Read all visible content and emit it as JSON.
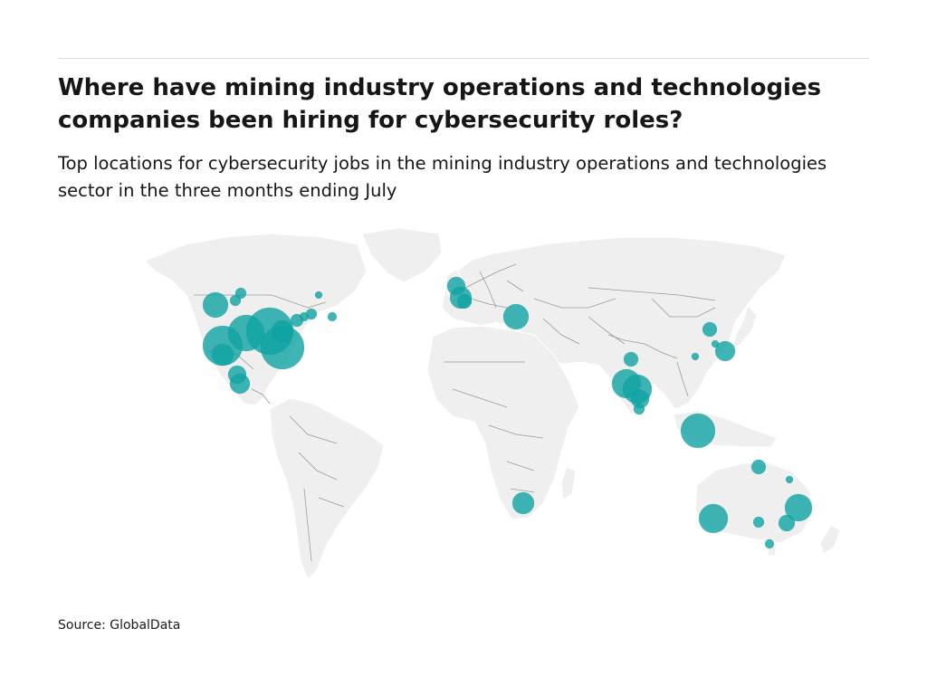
{
  "header": {
    "title": "Where have mining industry operations and technologies companies been hiring for cybersecurity roles?",
    "subtitle": "Top locations for cybersecurity jobs in the mining industry operations and technologies sector in the three months ending July"
  },
  "footer": {
    "source": "Source: GlobalData"
  },
  "colors": {
    "land": "#efefef",
    "border": "#9a9a9a",
    "bubble": "#0fa3a3"
  }
}
